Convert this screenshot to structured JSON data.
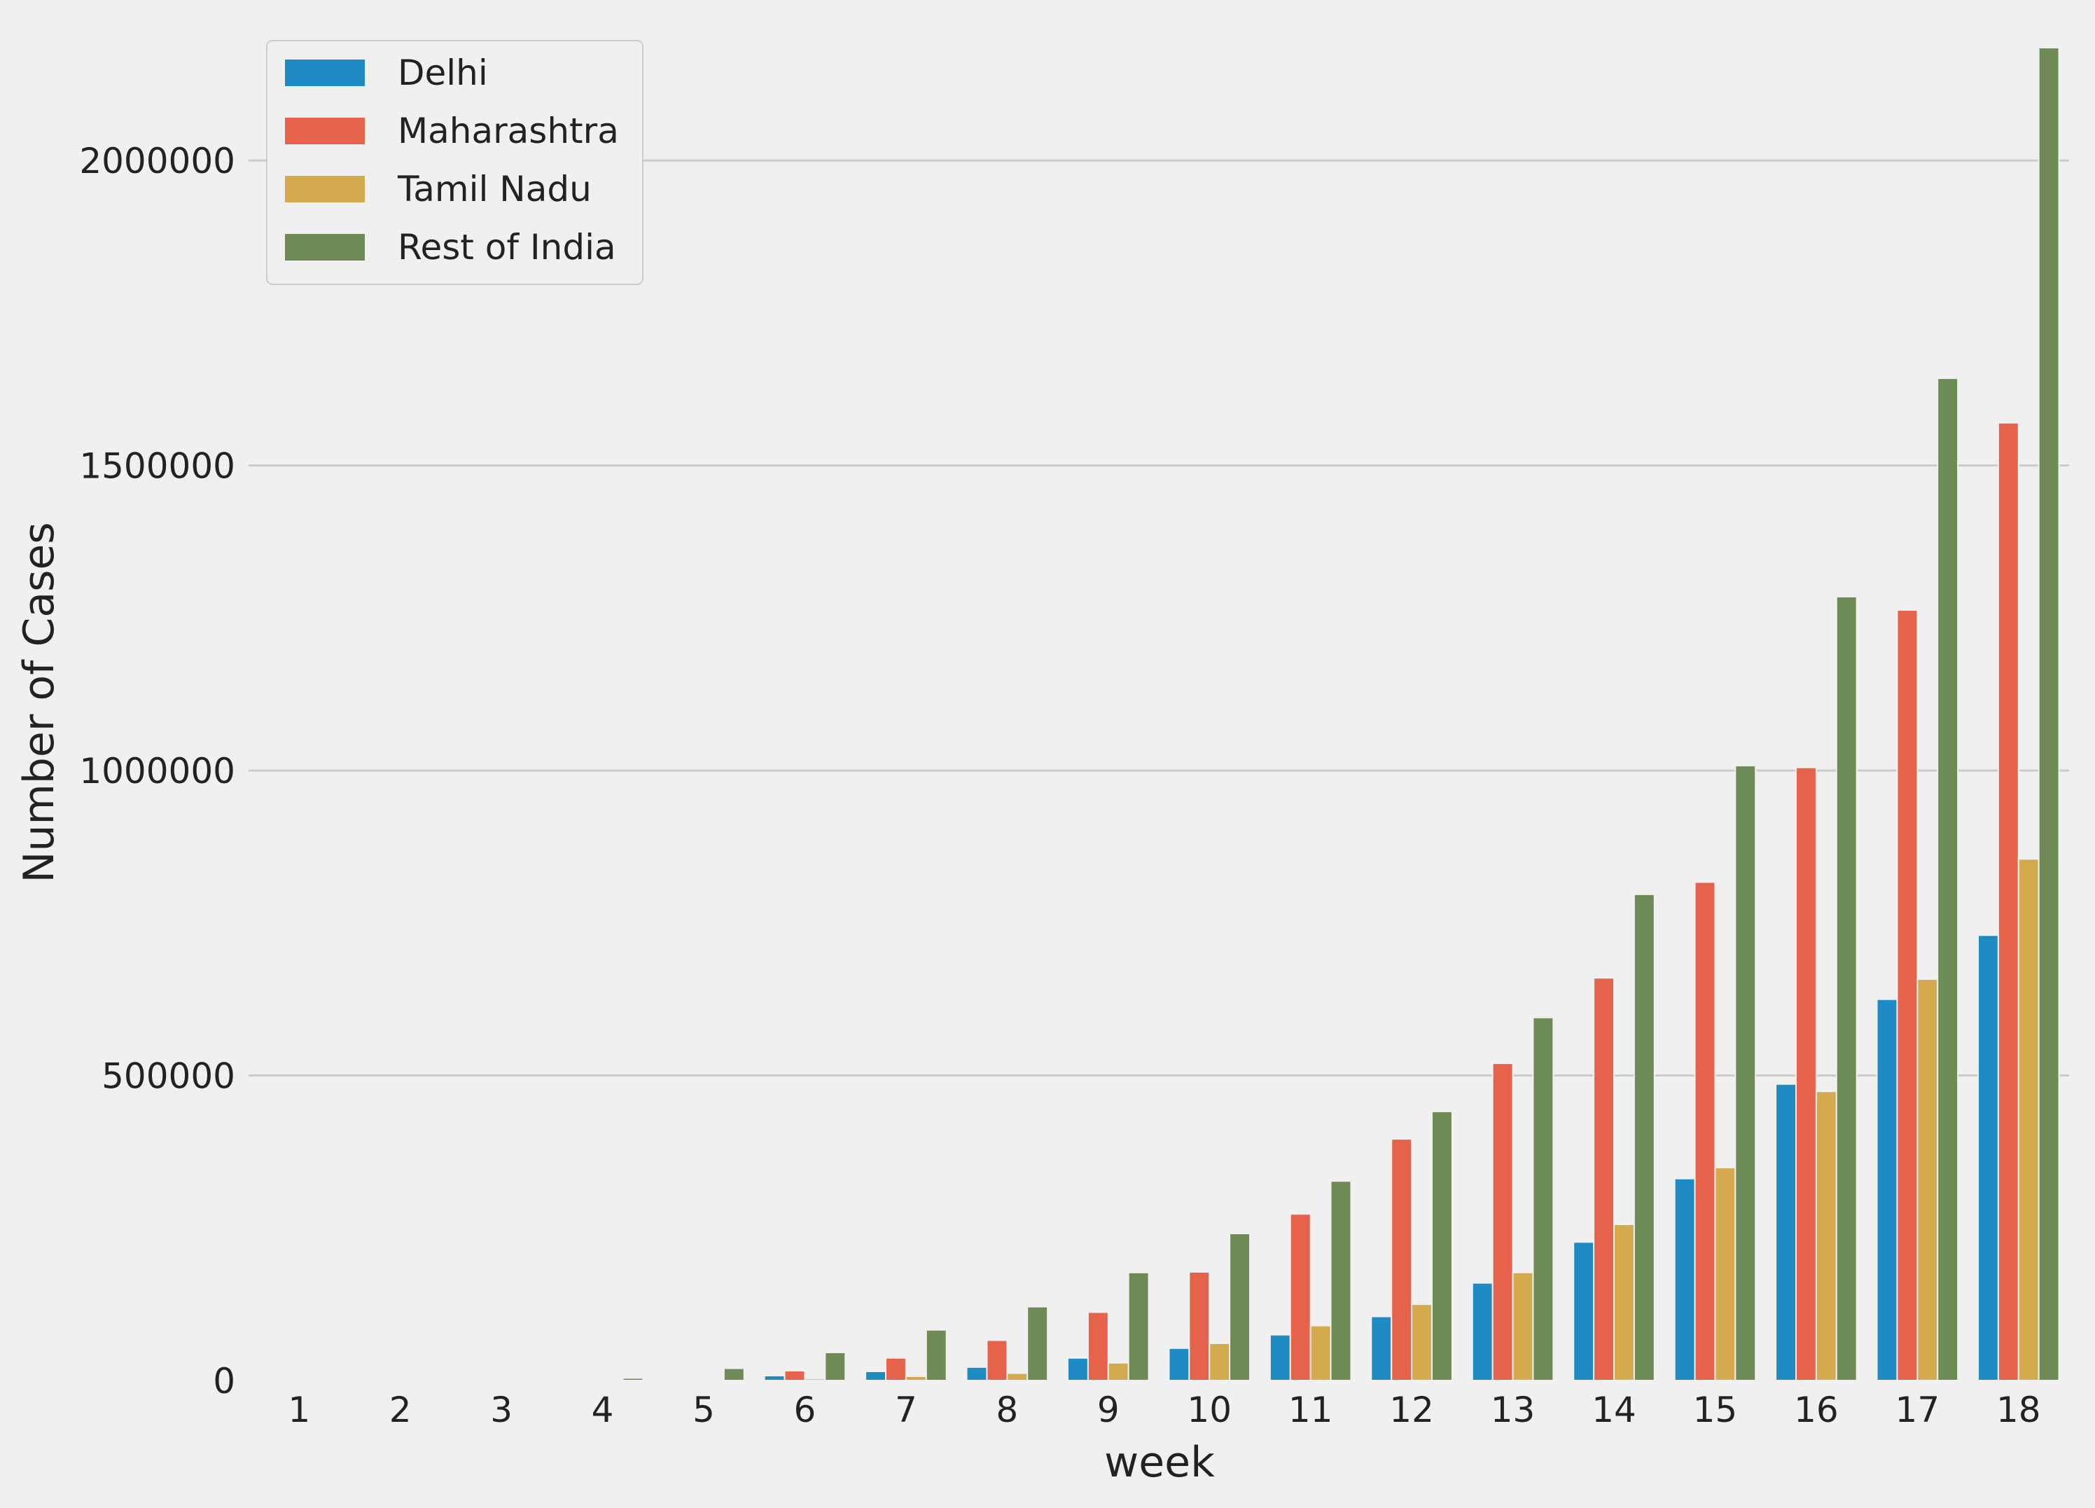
{
  "chart_data": {
    "type": "bar",
    "xlabel": "week",
    "ylabel": "Number of Cases",
    "categories": [
      "1",
      "2",
      "3",
      "4",
      "5",
      "6",
      "7",
      "8",
      "9",
      "10",
      "11",
      "12",
      "13",
      "14",
      "15",
      "16",
      "17",
      "18"
    ],
    "ylim": [
      0,
      2200000
    ],
    "yticks": [
      0,
      500000,
      1000000,
      1500000,
      2000000
    ],
    "grid": "horizontal",
    "legend_position": "top-left",
    "series": [
      {
        "name": "Delhi",
        "color": "#1f8bc4",
        "values": [
          0,
          0,
          0,
          0,
          1000,
          8000,
          15000,
          22000,
          37000,
          53000,
          75000,
          105000,
          160000,
          227000,
          331000,
          486000,
          625000,
          730000
        ]
      },
      {
        "name": "Maharashtra",
        "color": "#e5634a",
        "values": [
          0,
          0,
          0,
          500,
          2000,
          16000,
          37000,
          66000,
          112000,
          178000,
          273000,
          396000,
          520000,
          660000,
          817000,
          1005000,
          1263000,
          1570000
        ]
      },
      {
        "name": "Tamil Nadu",
        "color": "#d4aa4e",
        "values": [
          0,
          0,
          0,
          1000,
          1000,
          3000,
          7000,
          12000,
          29000,
          61000,
          90000,
          125000,
          177000,
          256000,
          349000,
          474000,
          658000,
          855000
        ]
      },
      {
        "name": "Rest of India",
        "color": "#6e8a55",
        "values": [
          0,
          0,
          0,
          4000,
          20000,
          46000,
          83000,
          121000,
          177000,
          241000,
          327000,
          441000,
          595000,
          797000,
          1008000,
          1285000,
          1643000,
          2185000
        ]
      }
    ]
  }
}
